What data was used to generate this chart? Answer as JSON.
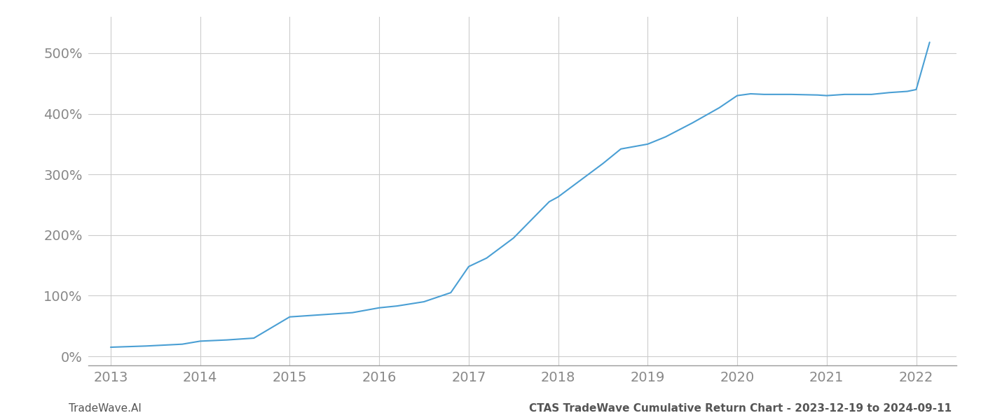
{
  "x_values": [
    2013.0,
    2013.4,
    2013.8,
    2014.0,
    2014.3,
    2014.6,
    2015.0,
    2015.3,
    2015.7,
    2016.0,
    2016.2,
    2016.5,
    2016.8,
    2017.0,
    2017.2,
    2017.5,
    2017.7,
    2017.9,
    2018.0,
    2018.2,
    2018.5,
    2018.7,
    2019.0,
    2019.2,
    2019.5,
    2019.8,
    2020.0,
    2020.15,
    2020.3,
    2020.6,
    2020.9,
    2021.0,
    2021.2,
    2021.5,
    2021.7,
    2021.9,
    2022.0,
    2022.15
  ],
  "y_values": [
    15,
    17,
    20,
    25,
    27,
    30,
    65,
    68,
    72,
    80,
    83,
    90,
    105,
    148,
    162,
    195,
    225,
    255,
    263,
    285,
    318,
    342,
    350,
    362,
    385,
    410,
    430,
    433,
    432,
    432,
    431,
    430,
    432,
    432,
    435,
    437,
    440,
    518
  ],
  "line_color": "#4a9fd4",
  "line_width": 1.5,
  "background_color": "#ffffff",
  "grid_color": "#cccccc",
  "ytick_labels": [
    "0%",
    "100%",
    "200%",
    "300%",
    "400%",
    "500%"
  ],
  "ytick_values": [
    0,
    100,
    200,
    300,
    400,
    500
  ],
  "xtick_values": [
    2013,
    2014,
    2015,
    2016,
    2017,
    2018,
    2019,
    2020,
    2021,
    2022
  ],
  "ylim": [
    -15,
    560
  ],
  "xlim": [
    2012.75,
    2022.45
  ],
  "footer_left": "TradeWave.AI",
  "footer_right": "CTAS TradeWave Cumulative Return Chart - 2023-12-19 to 2024-09-11",
  "footer_color": "#555555",
  "footer_fontsize": 11,
  "tick_color": "#888888",
  "tick_fontsize": 14,
  "spine_color": "#999999"
}
